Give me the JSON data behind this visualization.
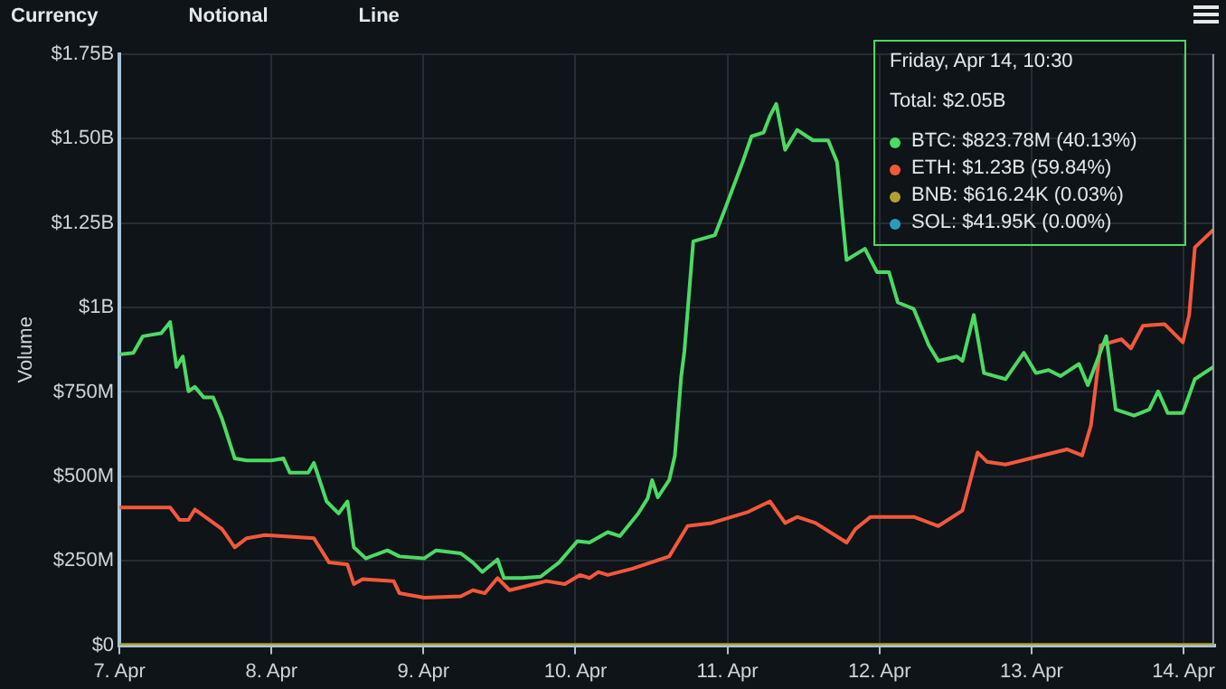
{
  "chart_data": {
    "type": "line",
    "ylabel": "Volume",
    "grid": true,
    "legend": "top right",
    "xlim": [
      "--04-07T00:00",
      "--04-14T05:00"
    ],
    "xticks": [
      {
        "value": "--04-07",
        "label": "7. Apr"
      },
      {
        "value": "--04-08",
        "label": "8. Apr"
      },
      {
        "value": "--04-09",
        "label": "9. Apr"
      },
      {
        "value": "--04-10",
        "label": "10. Apr"
      },
      {
        "value": "--04-11",
        "label": "11. Apr"
      },
      {
        "value": "--04-12",
        "label": "12. Apr"
      },
      {
        "value": "--04-13",
        "label": "13. Apr"
      },
      {
        "value": "--04-14",
        "label": "14. Apr"
      }
    ],
    "ylim": [
      0,
      1750000000
    ],
    "yticks": [
      {
        "value": 0,
        "label": "$0"
      },
      {
        "value": 250000000,
        "label": "$250M"
      },
      {
        "value": 500000000,
        "label": "$500M"
      },
      {
        "value": 750000000,
        "label": "$750M"
      },
      {
        "value": 1000000000,
        "label": "$1B"
      },
      {
        "value": 1250000000,
        "label": "$1.25B"
      },
      {
        "value": 1500000000,
        "label": "$1.50B"
      },
      {
        "value": 1750000000,
        "label": "$1.75B"
      }
    ],
    "series": [
      {
        "name": "BTC",
        "color": "#4cd964",
        "x": [
          "--04-07T00:00",
          "--04-07T02:12",
          "--04-07T03:42",
          "--04-07T06:36",
          "--04-07T08:00",
          "--04-07T09:00",
          "--04-07T10:00",
          "--04-07T10:54",
          "--04-07T11:54",
          "--04-07T13:18",
          "--04-07T14:48",
          "--04-07T16:12",
          "--04-07T18:12",
          "--04-07T20:06",
          "--04-08T00:00",
          "--04-08T01:54",
          "--04-08T02:54",
          "--04-08T05:48",
          "--04-08T06:42",
          "--04-08T08:42",
          "--04-08T10:36",
          "--04-08T12:00",
          "--04-08T13:00",
          "--04-08T14:54",
          "--04-08T16:24",
          "--04-08T18:18",
          "--04-08T20:12",
          "--04-09T00:06",
          "--04-09T02:00",
          "--04-09T05:54",
          "--04-09T07:48",
          "--04-09T09:18",
          "--04-09T11:42",
          "--04-09T12:42",
          "--04-09T15:36",
          "--04-09T18:30",
          "--04-09T21:24",
          "--04-10T00:18",
          "--04-10T02:12",
          "--04-10T05:06",
          "--04-10T07:00",
          "--04-10T09:54",
          "--04-10T11:24",
          "--04-10T12:06",
          "--04-10T13:00",
          "--04-10T14:48",
          "--04-10T15:42",
          "--04-10T16:42",
          "--04-10T17:12",
          "--04-10T18:36",
          "--04-10T22:00",
          "--04-10T23:30",
          "--04-11T02:24",
          "--04-11T03:48",
          "--04-11T05:42",
          "--04-11T06:42",
          "--04-11T07:42",
          "--04-11T09:06",
          "--04-11T11:00",
          "--04-11T13:30",
          "--04-11T15:54",
          "--04-11T17:18",
          "--04-11T18:48",
          "--04-11T21:42",
          "--04-11T23:36",
          "--04-12T01:30",
          "--04-12T02:54",
          "--04-12T05:24",
          "--04-12T07:48",
          "--04-12T09:18",
          "--04-12T12:12",
          "--04-12T13:06",
          "--04-12T14:54",
          "--04-12T16:30",
          "--04-12T19:54",
          "--04-12T22:48",
          "--04-13T00:42",
          "--04-13T02:42",
          "--04-13T04:36",
          "--04-13T07:30",
          "--04-13T08:54",
          "--04-13T11:48",
          "--04-13T13:18",
          "--04-13T16:12",
          "--04-13T18:36",
          "--04-13T20:00",
          "--04-13T21:30",
          "--04-13T23:54",
          "--04-14T01:48",
          "--04-14T04:42"
        ],
        "values": [
          861000000,
          866000000,
          915000000,
          924000000,
          957000000,
          824000000,
          855000000,
          752000000,
          765000000,
          734000000,
          734000000,
          670000000,
          553000000,
          547000000,
          547000000,
          553000000,
          511000000,
          511000000,
          540000000,
          426000000,
          390000000,
          426000000,
          290000000,
          257000000,
          268000000,
          281000000,
          263000000,
          257000000,
          281000000,
          272000000,
          245000000,
          217000000,
          254000000,
          199000000,
          199000000,
          203000000,
          245000000,
          308000000,
          304000000,
          335000000,
          323000000,
          390000000,
          435000000,
          489000000,
          438000000,
          489000000,
          562000000,
          797000000,
          870000000,
          1196000000,
          1214000000,
          1286000000,
          1431000000,
          1507000000,
          1518000000,
          1567000000,
          1603000000,
          1467000000,
          1526000000,
          1495000000,
          1495000000,
          1431000000,
          1141000000,
          1174000000,
          1105000000,
          1105000000,
          1015000000,
          996000000,
          888000000,
          842000000,
          855000000,
          842000000,
          978000000,
          806000000,
          788000000,
          866000000,
          806000000,
          815000000,
          797000000,
          833000000,
          770000000,
          915000000,
          698000000,
          680000000,
          698000000,
          752000000,
          688000000,
          688000000,
          788000000,
          823780000
        ]
      },
      {
        "name": "ETH",
        "color": "#f4583a",
        "x": [
          "--04-07T00:00",
          "--04-07T03:42",
          "--04-07T08:00",
          "--04-07T09:30",
          "--04-07T10:54",
          "--04-07T11:54",
          "--04-07T16:12",
          "--04-07T18:12",
          "--04-07T20:06",
          "--04-07T23:00",
          "--04-08T06:42",
          "--04-08T09:06",
          "--04-08T12:00",
          "--04-08T13:00",
          "--04-08T14:24",
          "--04-08T19:18",
          "--04-08T20:12",
          "--04-09T00:06",
          "--04-09T05:54",
          "--04-09T07:48",
          "--04-09T09:42",
          "--04-09T11:42",
          "--04-09T13:36",
          "--04-09T17:30",
          "--04-09T19:24",
          "--04-09T22:18",
          "--04-10T00:42",
          "--04-10T02:12",
          "--04-10T03:36",
          "--04-10T05:06",
          "--04-10T09:00",
          "--04-10T14:48",
          "--04-10T17:42",
          "--04-10T21:30",
          "--04-11T03:18",
          "--04-11T06:42",
          "--04-11T09:06",
          "--04-11T11:00",
          "--04-11T13:54",
          "--04-11T18:48",
          "--04-11T20:12",
          "--04-11T22:36",
          "--04-12T05:24",
          "--04-12T09:18",
          "--04-12T13:06",
          "--04-12T15:30",
          "--04-12T17:00",
          "--04-12T19:54",
          "--04-12T23:48",
          "--04-13T05:36",
          "--04-13T08:00",
          "--04-13T09:24",
          "--04-13T10:54",
          "--04-13T14:12",
          "--04-13T15:42",
          "--04-13T17:36",
          "--04-13T21:00",
          "--04-13T23:54",
          "--04-14T00:54",
          "--04-14T01:48",
          "--04-14T04:42"
        ],
        "values": [
          408000000,
          408000000,
          408000000,
          371000000,
          371000000,
          402000000,
          344000000,
          290000000,
          317000000,
          326000000,
          317000000,
          245000000,
          239000000,
          181000000,
          196000000,
          190000000,
          154000000,
          141000000,
          145000000,
          163000000,
          154000000,
          199000000,
          163000000,
          181000000,
          190000000,
          181000000,
          208000000,
          199000000,
          217000000,
          208000000,
          227000000,
          263000000,
          353000000,
          362000000,
          395000000,
          426000000,
          362000000,
          380000000,
          362000000,
          304000000,
          344000000,
          380000000,
          380000000,
          353000000,
          399000000,
          571000000,
          543000000,
          535000000,
          553000000,
          580000000,
          562000000,
          652000000,
          888000000,
          906000000,
          879000000,
          946000000,
          951000000,
          897000000,
          978000000,
          1178000000,
          1230000000
        ]
      },
      {
        "name": "BNB",
        "color": "#b3a12f",
        "x": [
          "--04-07T00:00",
          "--04-14T04:42"
        ],
        "values": [
          616240,
          616240
        ]
      },
      {
        "name": "SOL",
        "color": "#2a9bbf"
      }
    ],
    "ref_lines": [
      {
        "axis": "x",
        "value": "--04-14T04:42",
        "color": "#9aa4ad"
      }
    ],
    "annotations": [
      "Currency",
      "Notional",
      "Line",
      "Friday, Apr 14, 10:30",
      "Total: $2.05B",
      ": $823.78M (40.13%)",
      ": $1.23B (59.84%)",
      ": $616.24K (0.03%)",
      ": $41.95K (0.00%)"
    ]
  }
}
